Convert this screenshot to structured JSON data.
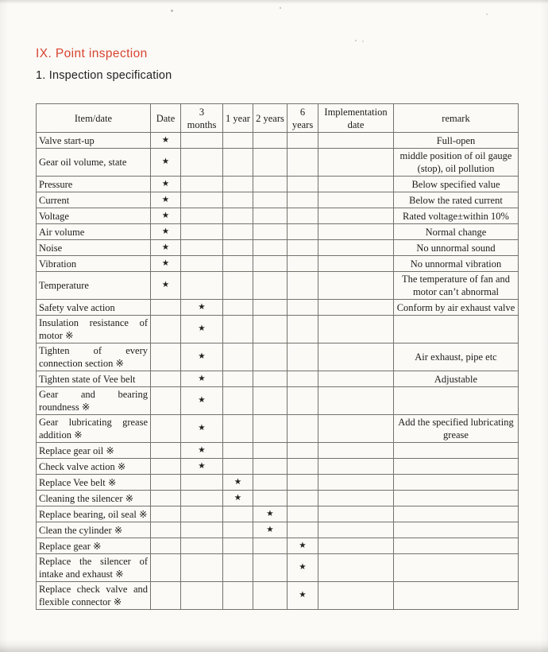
{
  "page": {
    "section_title": "IX. Point inspection",
    "subsection_title": "1. Inspection specification"
  },
  "colors": {
    "title_red": "#d84430",
    "text": "#1d1c1a",
    "table_border": "#73726a",
    "paper": "#fbfaf7"
  },
  "table": {
    "star_glyph": "★",
    "columns": [
      {
        "key": "item",
        "label": "Item/date"
      },
      {
        "key": "date",
        "label": "Date"
      },
      {
        "key": "m3",
        "label": "3 months"
      },
      {
        "key": "y1",
        "label": "1 year"
      },
      {
        "key": "y2",
        "label": "2 years"
      },
      {
        "key": "y6",
        "label": "6 years"
      },
      {
        "key": "impl",
        "label": "Implementation date"
      },
      {
        "key": "remark",
        "label": "remark"
      }
    ],
    "rows": [
      {
        "item": "Valve start-up",
        "interval": "date",
        "remark": "Full-open"
      },
      {
        "item": "Gear oil volume, state",
        "interval": "date",
        "remark": "middle position of oil gauge (stop), oil pollution"
      },
      {
        "item": "Pressure",
        "interval": "date",
        "remark": "Below specified value"
      },
      {
        "item": "Current",
        "interval": "date",
        "remark": "Below the rated current"
      },
      {
        "item": "Voltage",
        "interval": "date",
        "remark": "Rated voltage±within 10%"
      },
      {
        "item": "Air volume",
        "interval": "date",
        "remark": "Normal change"
      },
      {
        "item": "Noise",
        "interval": "date",
        "remark": "No unnormal sound"
      },
      {
        "item": "Vibration",
        "interval": "date",
        "remark": "No unnormal vibration"
      },
      {
        "item": "Temperature",
        "interval": "date",
        "remark": "The temperature of fan and motor can’t abnormal"
      },
      {
        "item": "Safety valve action",
        "interval": "m3",
        "remark": "Conform by air exhaust valve"
      },
      {
        "item": "Insulation resistance of motor ※",
        "interval": "m3",
        "remark": ""
      },
      {
        "item": "Tighten of every connection section ※",
        "interval": "m3",
        "remark": "Air exhaust, pipe etc"
      },
      {
        "item": "Tighten state of Vee belt",
        "interval": "m3",
        "remark": "Adjustable"
      },
      {
        "item": "Gear and bearing roundness ※",
        "interval": "m3",
        "remark": ""
      },
      {
        "item": "Gear lubricating grease addition ※",
        "interval": "m3",
        "remark": "Add the specified lubricating grease"
      },
      {
        "item": "Replace gear oil ※",
        "interval": "m3",
        "remark": ""
      },
      {
        "item": "Check valve action ※",
        "interval": "m3",
        "remark": ""
      },
      {
        "item": "Replace Vee belt ※",
        "interval": "y1",
        "remark": ""
      },
      {
        "item": "Cleaning the silencer ※",
        "interval": "y1",
        "remark": ""
      },
      {
        "item": "Replace bearing, oil seal ※",
        "interval": "y2",
        "remark": ""
      },
      {
        "item": "Clean the cylinder ※",
        "interval": "y2",
        "remark": ""
      },
      {
        "item": "Replace gear ※",
        "interval": "y6",
        "remark": ""
      },
      {
        "item": "Replace the silencer of intake and exhaust ※",
        "interval": "y6",
        "remark": ""
      },
      {
        "item": "Replace check valve and flexible connector ※",
        "interval": "y6",
        "remark": ""
      }
    ]
  }
}
